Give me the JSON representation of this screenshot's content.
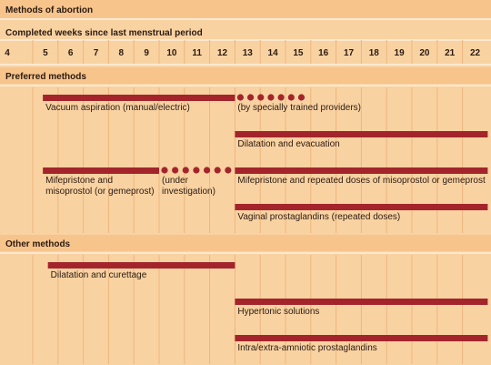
{
  "title": "Methods of abortion",
  "weeks_heading": "Completed weeks since last menstrual period",
  "weeks": [
    4,
    5,
    6,
    7,
    8,
    9,
    10,
    11,
    12,
    13,
    14,
    15,
    16,
    17,
    18,
    19,
    20,
    21,
    22
  ],
  "sections": [
    {
      "heading": "Preferred methods",
      "rows": [
        {
          "segments": [
            {
              "label": [
                "Vacuum aspiration (manual/electric)"
              ],
              "from": 5.4,
              "to": 13,
              "line": "solid"
            },
            {
              "label": [
                "(by specially trained providers)"
              ],
              "from": 13,
              "to": 15.7,
              "line": "dotted"
            }
          ]
        },
        {
          "segments": [
            {
              "label": [
                "Dilatation and evacuation"
              ],
              "from": 13,
              "to": 23,
              "line": "solid"
            }
          ]
        },
        {
          "segments": [
            {
              "label": [
                "Mifepristone and",
                "misoprostol (or gemeprost)"
              ],
              "from": 5.4,
              "to": 10,
              "line": "solid"
            },
            {
              "label": [
                "(under",
                "investigation)"
              ],
              "from": 10,
              "to": 12.8,
              "line": "dotted"
            },
            {
              "label": [
                "Mifepristone and repeated doses of misoprostol or gemeprost"
              ],
              "from": 13,
              "to": 23,
              "line": "solid"
            }
          ]
        },
        {
          "segments": [
            {
              "label": [
                "Vaginal prostaglandins (repeated doses)"
              ],
              "from": 13,
              "to": 23,
              "line": "solid"
            }
          ]
        }
      ]
    },
    {
      "heading": "Other methods",
      "rows": [
        {
          "segments": [
            {
              "label": [
                "Dilatation and curettage"
              ],
              "from": 5.6,
              "to": 13,
              "line": "solid"
            }
          ]
        },
        {
          "segments": [
            {
              "label": [
                "Hypertonic solutions"
              ],
              "from": 13,
              "to": 23,
              "line": "solid"
            }
          ]
        },
        {
          "segments": [
            {
              "label": [
                "Intra/extra-amniotic prostaglandins"
              ],
              "from": 13,
              "to": 23,
              "line": "solid"
            }
          ]
        }
      ]
    }
  ]
}
